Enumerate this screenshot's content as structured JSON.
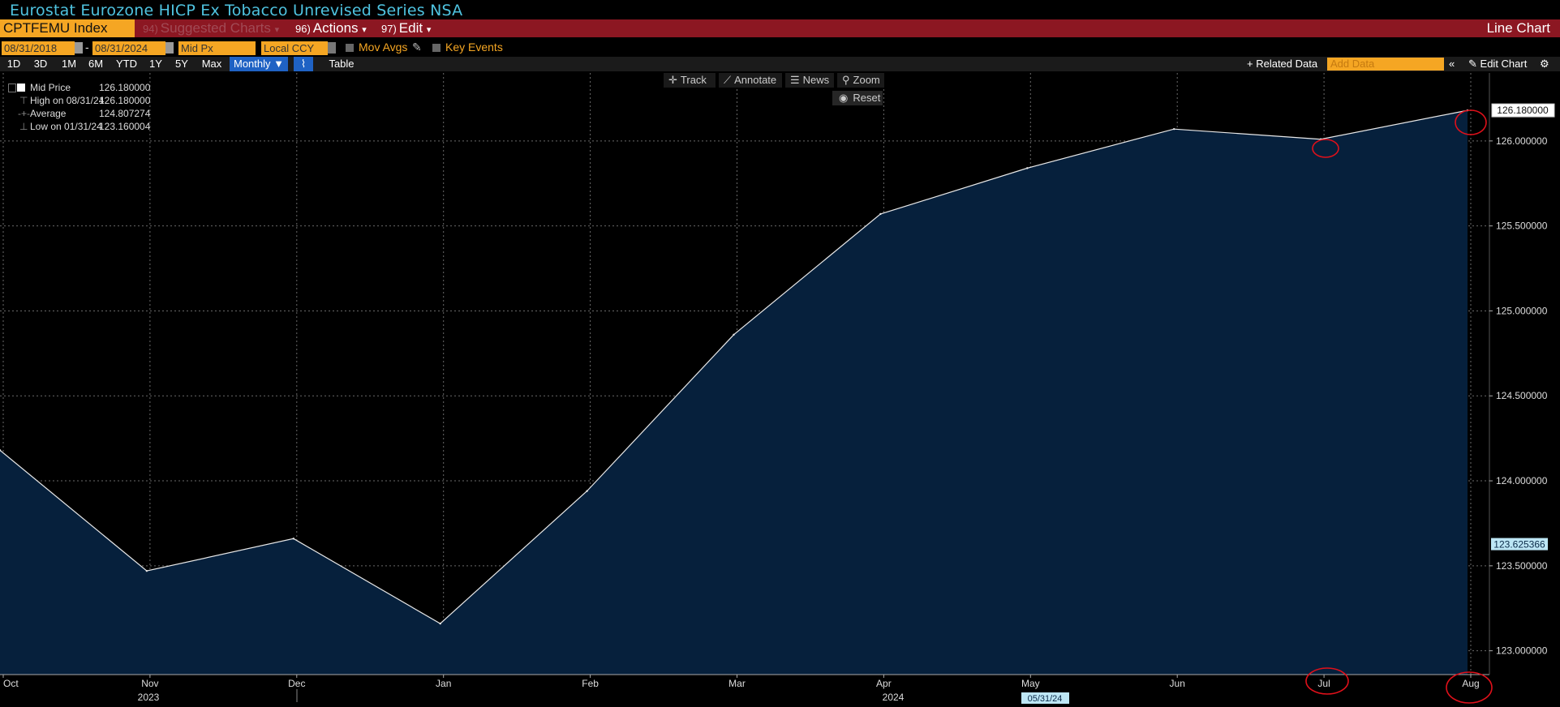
{
  "window": {
    "title": "Eurostat Eurozone HICP Ex Tobacco Unrevised Series NSA",
    "ticker": "CPTFEMU Index",
    "menu_suggested": "Suggested Charts",
    "menu_suggested_num": "94)",
    "menu_actions": "Actions",
    "menu_actions_num": "96)",
    "menu_edit": "Edit",
    "menu_edit_num": "97)",
    "chart_kind": "Line Chart"
  },
  "controls": {
    "start_date": "08/31/2018",
    "end_date": "08/31/2024",
    "field": "Mid Px",
    "currency": "Local CCY",
    "mov_avgs": "Mov Avgs",
    "key_events": "Key Events",
    "ranges": [
      "1D",
      "3D",
      "1M",
      "6M",
      "YTD",
      "1Y",
      "5Y",
      "Max"
    ],
    "frequency": "Monthly",
    "table": "Table",
    "related": "+ Related Data",
    "add_data_placeholder": "Add Data",
    "edit_chart": "Edit Chart"
  },
  "toolbar": {
    "track": "Track",
    "annotate": "Annotate",
    "news": "News",
    "zoom": "Zoom",
    "reset": "Reset"
  },
  "legend": {
    "mid_label": "Mid Price",
    "mid_value": "126.180000",
    "high_label": "High on 08/31/24",
    "high_value": "126.180000",
    "avg_label": "Average",
    "avg_value": "124.807274",
    "low_label": "Low on 01/31/24",
    "low_value": "123.160004"
  },
  "colors": {
    "area_fill": "#06203c",
    "line": "#e8e8e8",
    "annotation": "#e0101a",
    "accent": "#f5a623"
  },
  "chart_data": {
    "type": "area",
    "title": "",
    "x": [
      "2023-09-30",
      "2023-10-31",
      "2023-11-30",
      "2023-12-31",
      "2024-01-31",
      "2024-02-29",
      "2024-03-31",
      "2024-04-30",
      "2024-05-31",
      "2024-06-30",
      "2024-07-31",
      "2024-08-31"
    ],
    "series": [
      {
        "name": "Mid Price",
        "values": [
          124.3,
          124.18,
          123.47,
          123.66,
          123.16,
          123.94,
          124.86,
          125.57,
          125.84,
          126.07,
          126.01,
          126.18
        ]
      }
    ],
    "x_tick_labels": [
      "Oct",
      "Nov",
      "Dec",
      "Jan",
      "Feb",
      "Mar",
      "Apr",
      "May",
      "Jun",
      "Jul",
      "Aug"
    ],
    "year_labels": [
      "2023",
      "2024"
    ],
    "ylim": [
      122.86,
      126.4
    ],
    "y_ticks": [
      123.0,
      123.5,
      124.0,
      124.5,
      125.0,
      125.5,
      126.0
    ],
    "y_tick_labels": [
      "123.000000",
      "123.500000",
      "124.000000",
      "124.500000",
      "125.000000",
      "125.500000",
      "126.000000"
    ],
    "last_value_label": "126.180000",
    "crosshair_value_label": "123.625366",
    "crosshair_date_label": "05/31/24",
    "grid": true,
    "legend_position": "top-left"
  }
}
